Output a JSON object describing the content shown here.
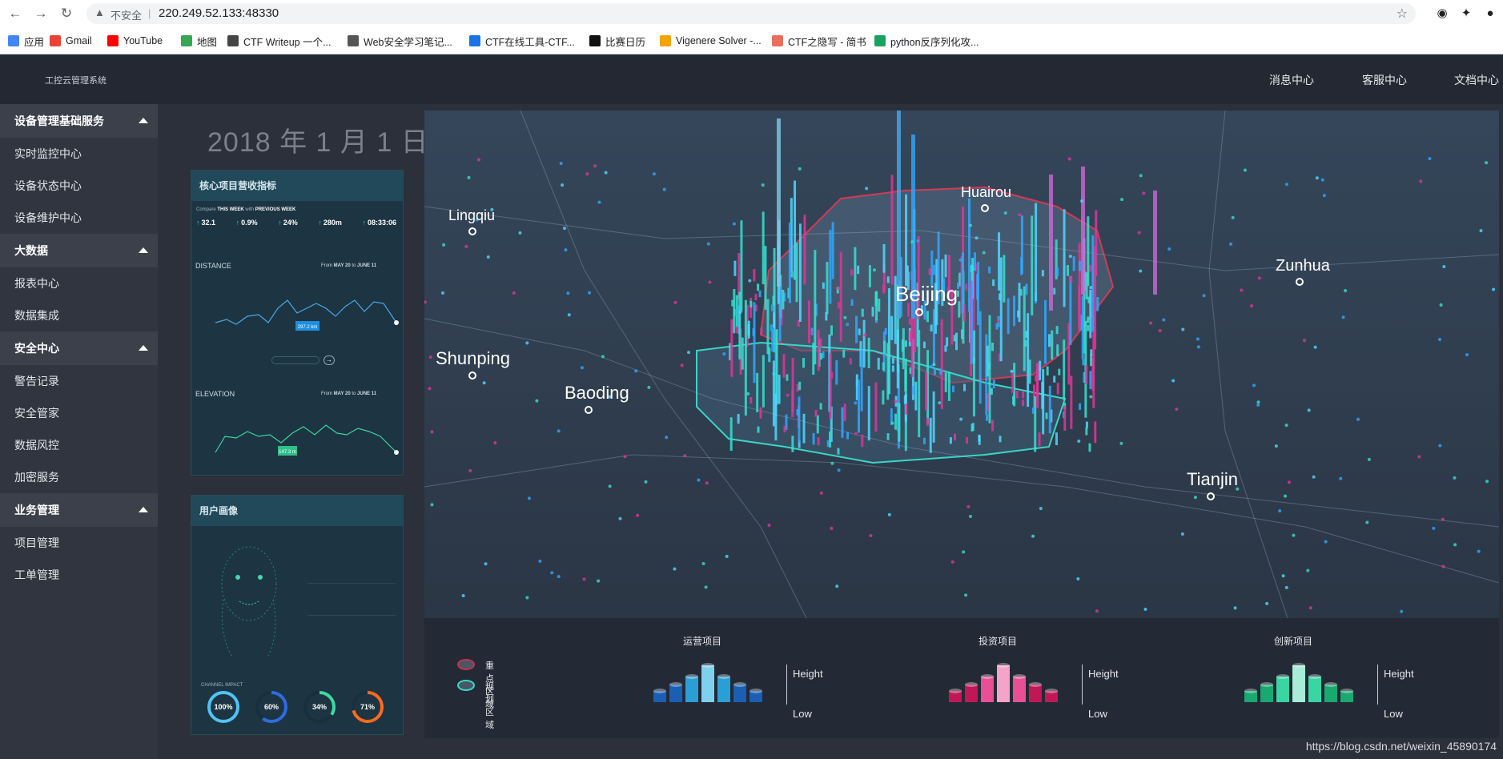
{
  "browser": {
    "insecure_label": "不安全",
    "url": "220.249.52.133:48330",
    "bookmarks": [
      {
        "label": "应用",
        "icon": "apps-grid-icon",
        "color": "#4285f4"
      },
      {
        "label": "Gmail",
        "icon": "gmail-icon",
        "color": "#ea4335"
      },
      {
        "label": "YouTube",
        "icon": "youtube-icon",
        "color": "#ff0000"
      },
      {
        "label": "地图",
        "icon": "maps-icon",
        "color": "#34a853"
      },
      {
        "label": "CTF Writeup 一个...",
        "icon": "ctf-writeup-icon",
        "color": "#444444"
      },
      {
        "label": "Web安全学习笔记...",
        "icon": "book-icon",
        "color": "#555555"
      },
      {
        "label": "CTF在线工具-CTF...",
        "icon": "ctf-tools-icon",
        "color": "#1a73e8"
      },
      {
        "label": "比赛日历",
        "icon": "notion-icon",
        "color": "#111111"
      },
      {
        "label": "Vigenere Solver -...",
        "icon": "vigenere-icon",
        "color": "#f4a300"
      },
      {
        "label": "CTF之隐写 - 简书",
        "icon": "jianshu-icon",
        "color": "#ea6f5a"
      },
      {
        "label": "python反序列化攻...",
        "icon": "shield-icon",
        "color": "#1aa260"
      }
    ]
  },
  "header": {
    "title": "工控云管理系统",
    "links": [
      "消息中心",
      "客服中心",
      "文档中心"
    ]
  },
  "sidebar": {
    "groups": [
      {
        "label": "设备管理基础服务",
        "items": [
          "实时监控中心",
          "设备状态中心",
          "设备维护中心"
        ]
      },
      {
        "label": "大数据",
        "items": [
          "报表中心",
          "数据集成"
        ]
      },
      {
        "label": "安全中心",
        "items": [
          "警告记录",
          "安全管家",
          "数据风控",
          "加密服务"
        ]
      },
      {
        "label": "业务管理",
        "items": [
          "项目管理",
          "工单管理"
        ]
      }
    ]
  },
  "main": {
    "date": "2018 年 1 月 1 日",
    "card1": {
      "title": "核心项目营收指标",
      "compare": [
        "Compare",
        "THIS WEEK",
        "with",
        "PREVIOUS WEEK"
      ],
      "kpis": [
        "32.1",
        "0.9%",
        "24%",
        "280m",
        "08:33:06"
      ],
      "distance": {
        "label": "DISTANCE",
        "from": "From",
        "d1": "MAY 20",
        "to": "to",
        "d2": "JUNE 11",
        "tooltip": "297.2 km"
      },
      "elevation": {
        "label": "ELEVATION",
        "from": "From",
        "d1": "MAY 20",
        "to": "to",
        "d2": "JUNE 11",
        "tooltip": "147.3 m"
      }
    },
    "card2": {
      "title": "用户画像",
      "impact_label": "CHANNEL IMPACT",
      "gauges": [
        {
          "value": "100",
          "unit": "%",
          "color": "#4fc3f7",
          "fraction": 1.0
        },
        {
          "value": "60",
          "unit": "%",
          "color": "#2f6ce0",
          "fraction": 0.6
        },
        {
          "value": "34",
          "unit": "%",
          "color": "#3fd9a3",
          "fraction": 0.34
        },
        {
          "value": "71",
          "unit": "%",
          "color": "#ff6a1f",
          "fraction": 0.71
        }
      ]
    },
    "map": {
      "cities": [
        "Huairou",
        "Lingqiu",
        "Beijing",
        "Zunhua",
        "Shunping",
        "Baoding",
        "Tianjin"
      ]
    },
    "legend": {
      "zones": [
        {
          "label": "重点区域",
          "color": "#c2334d"
        },
        {
          "label": "规划区域",
          "color": "#39d6c7"
        }
      ],
      "groups": [
        {
          "title": "运营项目",
          "colors": [
            "#1a5fb4",
            "#2a9fd6",
            "#7fd0ef"
          ]
        },
        {
          "title": "投资项目",
          "colors": [
            "#c21757",
            "#e84f95",
            "#f3a4c8"
          ]
        },
        {
          "title": "创新项目",
          "colors": [
            "#18a870",
            "#39d6a3",
            "#a6ecd6"
          ]
        }
      ],
      "high": "Height",
      "low": "Low"
    }
  },
  "watermark": "https://blog.csdn.net/weixin_45890174"
}
